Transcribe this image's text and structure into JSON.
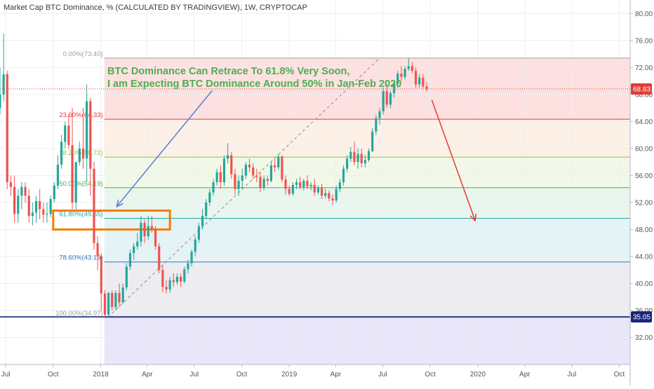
{
  "header": {
    "title": "Market Cap BTC Dominance, % (CALCULATED BY TRADINGVIEW), 1W, CRYPTOCAP"
  },
  "annotation": {
    "line1": "BTC Dominance Can Retrace To 61.8% Very Soon,",
    "line2": "I am Expecting BTC Dominance Around 50% in Jan-Feb 2020"
  },
  "price_labels": {
    "last": "68.83",
    "support": "35.05"
  },
  "colors": {
    "up": "#26a69a",
    "down": "#ef5350",
    "annotation": "#4caf50",
    "highlight_box": "#f57c00",
    "forecast_arrow": "#e53935",
    "pointer_arrow": "#5b7bd5",
    "support_line": "#1a237e",
    "last_price": "#e53935"
  },
  "chart_data": {
    "type": "candlestick",
    "title": "Market Cap BTC Dominance, % (CALCULATED BY TRADINGVIEW), 1W, CRYPTOCAP",
    "y_axis": {
      "position": "right",
      "range": [
        28,
        82
      ],
      "ticks": [
        "32.00",
        "36.00",
        "40.00",
        "44.00",
        "48.00",
        "52.00",
        "56.00",
        "60.00",
        "64.00",
        "68.00",
        "72.00",
        "76.00",
        "80.00"
      ]
    },
    "x_axis": {
      "range": [
        "2017-06-20",
        "2020-10-22"
      ],
      "ticks": [
        {
          "label": "Jul",
          "date": "2017-07-01"
        },
        {
          "label": "Oct",
          "date": "2017-10-01"
        },
        {
          "label": "2018",
          "date": "2018-01-01"
        },
        {
          "label": "Apr",
          "date": "2018-04-01"
        },
        {
          "label": "Jul",
          "date": "2018-07-01"
        },
        {
          "label": "Oct",
          "date": "2018-10-01"
        },
        {
          "label": "2019",
          "date": "2019-01-01"
        },
        {
          "label": "Apr",
          "date": "2019-04-01"
        },
        {
          "label": "Jul",
          "date": "2019-07-01"
        },
        {
          "label": "Oct",
          "date": "2019-10-01"
        },
        {
          "label": "2020",
          "date": "2020-01-01"
        },
        {
          "label": "Apr",
          "date": "2020-04-01"
        },
        {
          "label": "Jul",
          "date": "2020-07-01"
        },
        {
          "label": "Oct",
          "date": "2020-10-01"
        }
      ]
    },
    "grid": true,
    "fibonacci": {
      "start_date": "2018-01-08",
      "end_date": "2020-10-22",
      "levels": [
        {
          "label": "0.00%(73.40)",
          "value": 73.4,
          "color": "#9e9e9e",
          "fill": "#fde0e0"
        },
        {
          "label": "23.60%(64.33)",
          "value": 64.33,
          "color": "#e53935",
          "fill": "#fdf0e6"
        },
        {
          "label": "38.20%(58.72)",
          "value": 58.72,
          "color": "#8bc34a",
          "fill": "#f2f8e8"
        },
        {
          "label": "50.00%(54.19)",
          "value": 54.19,
          "color": "#4caf50",
          "fill": "#e8f6ee"
        },
        {
          "label": "61.80%(49.65)",
          "value": 49.65,
          "color": "#26a69a",
          "fill": "#e4f3f5"
        },
        {
          "label": "78.60%(43.19)",
          "value": 43.19,
          "color": "#2979c5",
          "fill": "#ececf1"
        },
        {
          "label": "100.00%(34.97)",
          "value": 34.97,
          "color": "#9e9e9e",
          "fill": "#e8e6f8"
        }
      ]
    },
    "horizontal_lines": [
      {
        "value": 35.05,
        "label": "35.05",
        "color": "#1a237e"
      },
      {
        "value": 68.83,
        "label": "68.83",
        "color": "#e53935",
        "style": "dotted"
      }
    ],
    "trend_line": {
      "from": {
        "date": "2018-01-15",
        "value": 35.0
      },
      "to": {
        "date": "2019-06-25",
        "value": 73.4
      }
    },
    "highlight_box": {
      "x": [
        "2017-10-01",
        "2018-05-15"
      ],
      "y": [
        48.0,
        50.8
      ]
    },
    "pointer_arrow": {
      "from": {
        "date": "2018-08-05",
        "value": 68.6
      },
      "to": {
        "date": "2018-02-01",
        "value": 51.4
      }
    },
    "forecast_arrow": {
      "from": {
        "date": "2019-10-04",
        "value": 67.2
      },
      "to": {
        "date": "2019-12-27",
        "value": 49.3
      }
    },
    "candles": [
      {
        "d": "2017-06-20",
        "o": 66,
        "h": 72,
        "l": 65,
        "c": 68
      },
      {
        "d": "2017-06-27",
        "o": 68,
        "h": 77,
        "l": 67,
        "c": 71
      },
      {
        "d": "2017-07-04",
        "o": 71,
        "h": 71.5,
        "l": 54,
        "c": 55
      },
      {
        "d": "2017-07-11",
        "o": 55,
        "h": 56,
        "l": 53,
        "c": 54.3
      },
      {
        "d": "2017-07-18",
        "o": 54.3,
        "h": 56,
        "l": 49,
        "c": 50.3
      },
      {
        "d": "2017-07-25",
        "o": 50.3,
        "h": 54,
        "l": 49,
        "c": 53
      },
      {
        "d": "2017-08-01",
        "o": 53,
        "h": 55,
        "l": 51,
        "c": 54.3
      },
      {
        "d": "2017-08-08",
        "o": 54.3,
        "h": 55,
        "l": 52,
        "c": 53
      },
      {
        "d": "2017-08-15",
        "o": 53,
        "h": 54,
        "l": 49,
        "c": 50
      },
      {
        "d": "2017-08-22",
        "o": 50,
        "h": 52,
        "l": 48.6,
        "c": 50.5
      },
      {
        "d": "2017-08-29",
        "o": 50.5,
        "h": 53,
        "l": 49,
        "c": 52.2
      },
      {
        "d": "2017-09-05",
        "o": 52.2,
        "h": 54,
        "l": 49.5,
        "c": 51
      },
      {
        "d": "2017-09-12",
        "o": 51,
        "h": 52,
        "l": 49,
        "c": 50.2
      },
      {
        "d": "2017-09-19",
        "o": 50.2,
        "h": 52,
        "l": 49,
        "c": 50.3
      },
      {
        "d": "2017-09-26",
        "o": 50.3,
        "h": 53,
        "l": 49.8,
        "c": 52.5
      },
      {
        "d": "2017-10-03",
        "o": 52.5,
        "h": 55,
        "l": 52,
        "c": 54.5
      },
      {
        "d": "2017-10-10",
        "o": 54.5,
        "h": 59,
        "l": 54,
        "c": 57.6
      },
      {
        "d": "2017-10-17",
        "o": 57.6,
        "h": 62,
        "l": 57,
        "c": 61
      },
      {
        "d": "2017-10-24",
        "o": 61,
        "h": 64,
        "l": 60,
        "c": 63.4
      },
      {
        "d": "2017-10-31",
        "o": 63.4,
        "h": 65,
        "l": 60,
        "c": 60.5
      },
      {
        "d": "2017-11-07",
        "o": 60.5,
        "h": 66,
        "l": 51,
        "c": 52
      },
      {
        "d": "2017-11-14",
        "o": 52,
        "h": 58,
        "l": 51,
        "c": 58
      },
      {
        "d": "2017-11-21",
        "o": 58,
        "h": 61,
        "l": 57.5,
        "c": 60
      },
      {
        "d": "2017-11-28",
        "o": 60,
        "h": 66,
        "l": 57,
        "c": 58.5
      },
      {
        "d": "2017-12-05",
        "o": 58.5,
        "h": 69.5,
        "l": 55,
        "c": 67
      },
      {
        "d": "2017-12-12",
        "o": 67,
        "h": 67.5,
        "l": 53,
        "c": 57
      },
      {
        "d": "2017-12-19",
        "o": 57,
        "h": 58,
        "l": 45,
        "c": 46
      },
      {
        "d": "2017-12-26",
        "o": 46,
        "h": 47,
        "l": 42,
        "c": 44
      },
      {
        "d": "2018-01-02",
        "o": 44,
        "h": 44.5,
        "l": 36,
        "c": 38.5
      },
      {
        "d": "2018-01-09",
        "o": 38.5,
        "h": 39,
        "l": 34.9,
        "c": 35.4
      },
      {
        "d": "2018-01-16",
        "o": 35.4,
        "h": 38.7,
        "l": 35,
        "c": 38.6
      },
      {
        "d": "2018-01-23",
        "o": 38.6,
        "h": 39,
        "l": 36,
        "c": 36.5
      },
      {
        "d": "2018-01-30",
        "o": 36.5,
        "h": 39,
        "l": 36,
        "c": 38.6
      },
      {
        "d": "2018-02-06",
        "o": 38.6,
        "h": 40,
        "l": 36.5,
        "c": 37.2
      },
      {
        "d": "2018-02-13",
        "o": 37.2,
        "h": 40,
        "l": 37,
        "c": 39.4
      },
      {
        "d": "2018-02-20",
        "o": 39.4,
        "h": 43,
        "l": 39,
        "c": 42.5
      },
      {
        "d": "2018-02-27",
        "o": 42.5,
        "h": 45,
        "l": 42,
        "c": 44.5
      },
      {
        "d": "2018-03-06",
        "o": 44.5,
        "h": 46,
        "l": 43.5,
        "c": 45.5
      },
      {
        "d": "2018-03-13",
        "o": 45.5,
        "h": 47.5,
        "l": 45,
        "c": 46.2
      },
      {
        "d": "2018-03-20",
        "o": 46.2,
        "h": 50,
        "l": 45.5,
        "c": 49
      },
      {
        "d": "2018-03-27",
        "o": 49,
        "h": 49.5,
        "l": 46,
        "c": 47
      },
      {
        "d": "2018-04-03",
        "o": 47,
        "h": 50,
        "l": 46.5,
        "c": 48.5
      },
      {
        "d": "2018-04-10",
        "o": 48.5,
        "h": 50,
        "l": 47.5,
        "c": 48
      },
      {
        "d": "2018-04-17",
        "o": 48,
        "h": 48.5,
        "l": 45,
        "c": 45.5
      },
      {
        "d": "2018-04-24",
        "o": 45.5,
        "h": 46,
        "l": 41.5,
        "c": 42
      },
      {
        "d": "2018-05-01",
        "o": 42,
        "h": 42.8,
        "l": 38.7,
        "c": 39.5
      },
      {
        "d": "2018-05-08",
        "o": 39.5,
        "h": 40.5,
        "l": 38.5,
        "c": 39.1
      },
      {
        "d": "2018-05-15",
        "o": 39.1,
        "h": 41,
        "l": 38.6,
        "c": 40.5
      },
      {
        "d": "2018-05-22",
        "o": 40.5,
        "h": 41.5,
        "l": 39.5,
        "c": 40.2
      },
      {
        "d": "2018-05-29",
        "o": 40.2,
        "h": 41.5,
        "l": 39.8,
        "c": 41
      },
      {
        "d": "2018-06-05",
        "o": 41,
        "h": 41.5,
        "l": 39.5,
        "c": 40.3
      },
      {
        "d": "2018-06-12",
        "o": 40.3,
        "h": 42.5,
        "l": 40,
        "c": 42.1
      },
      {
        "d": "2018-06-19",
        "o": 42.1,
        "h": 43.5,
        "l": 41.5,
        "c": 43
      },
      {
        "d": "2018-06-26",
        "o": 43,
        "h": 45,
        "l": 42.5,
        "c": 44.7
      },
      {
        "d": "2018-07-03",
        "o": 44.7,
        "h": 47,
        "l": 44,
        "c": 46.5
      },
      {
        "d": "2018-07-10",
        "o": 46.5,
        "h": 49,
        "l": 46,
        "c": 48.5
      },
      {
        "d": "2018-07-17",
        "o": 48.5,
        "h": 51,
        "l": 48,
        "c": 50
      },
      {
        "d": "2018-07-24",
        "o": 50,
        "h": 52.5,
        "l": 49.5,
        "c": 52
      },
      {
        "d": "2018-07-31",
        "o": 52,
        "h": 54,
        "l": 51.5,
        "c": 53.5
      },
      {
        "d": "2018-08-07",
        "o": 53.5,
        "h": 55.5,
        "l": 53,
        "c": 55
      },
      {
        "d": "2018-08-14",
        "o": 55,
        "h": 57,
        "l": 54.5,
        "c": 56.5
      },
      {
        "d": "2018-08-21",
        "o": 56.5,
        "h": 57.5,
        "l": 54,
        "c": 55
      },
      {
        "d": "2018-08-28",
        "o": 55,
        "h": 59,
        "l": 54.5,
        "c": 58.5
      },
      {
        "d": "2018-09-04",
        "o": 58.5,
        "h": 60.8,
        "l": 57.8,
        "c": 59
      },
      {
        "d": "2018-09-11",
        "o": 59,
        "h": 59.5,
        "l": 55.5,
        "c": 56.2
      },
      {
        "d": "2018-09-18",
        "o": 56.2,
        "h": 57,
        "l": 53.2,
        "c": 54
      },
      {
        "d": "2018-09-25",
        "o": 54,
        "h": 56,
        "l": 53,
        "c": 55.2
      },
      {
        "d": "2018-10-02",
        "o": 55.2,
        "h": 57,
        "l": 54,
        "c": 56
      },
      {
        "d": "2018-10-09",
        "o": 56,
        "h": 58,
        "l": 55.5,
        "c": 57.6
      },
      {
        "d": "2018-10-16",
        "o": 57.6,
        "h": 58.5,
        "l": 56.5,
        "c": 57.2
      },
      {
        "d": "2018-10-23",
        "o": 57.2,
        "h": 57.8,
        "l": 55.5,
        "c": 56
      },
      {
        "d": "2018-10-30",
        "o": 56,
        "h": 57,
        "l": 55,
        "c": 55.8
      },
      {
        "d": "2018-11-06",
        "o": 55.8,
        "h": 56.5,
        "l": 53.5,
        "c": 54.2
      },
      {
        "d": "2018-11-13",
        "o": 54.2,
        "h": 56,
        "l": 53.8,
        "c": 55.5
      },
      {
        "d": "2018-11-20",
        "o": 55.5,
        "h": 56,
        "l": 54.5,
        "c": 55.2
      },
      {
        "d": "2018-11-27",
        "o": 55.2,
        "h": 58,
        "l": 55,
        "c": 57.5
      },
      {
        "d": "2018-12-04",
        "o": 57.5,
        "h": 58.5,
        "l": 56.5,
        "c": 57.2
      },
      {
        "d": "2018-12-11",
        "o": 57.2,
        "h": 59.2,
        "l": 56.8,
        "c": 58.8
      },
      {
        "d": "2018-12-18",
        "o": 58.8,
        "h": 59,
        "l": 55,
        "c": 55.4
      },
      {
        "d": "2018-12-25",
        "o": 55.4,
        "h": 56,
        "l": 53.2,
        "c": 54
      },
      {
        "d": "2019-01-01",
        "o": 54,
        "h": 54.5,
        "l": 53,
        "c": 53.3
      },
      {
        "d": "2019-01-08",
        "o": 53.3,
        "h": 55,
        "l": 53,
        "c": 54.6
      },
      {
        "d": "2019-01-15",
        "o": 54.6,
        "h": 55.5,
        "l": 54,
        "c": 55
      },
      {
        "d": "2019-01-22",
        "o": 55,
        "h": 55.8,
        "l": 54,
        "c": 54.3
      },
      {
        "d": "2019-01-29",
        "o": 54.3,
        "h": 55.5,
        "l": 53.8,
        "c": 55.2
      },
      {
        "d": "2019-02-05",
        "o": 55.2,
        "h": 56,
        "l": 54,
        "c": 54.4
      },
      {
        "d": "2019-02-12",
        "o": 54.4,
        "h": 55,
        "l": 53.8,
        "c": 54.6
      },
      {
        "d": "2019-02-19",
        "o": 54.6,
        "h": 55.5,
        "l": 53,
        "c": 53.5
      },
      {
        "d": "2019-02-26",
        "o": 53.5,
        "h": 54.5,
        "l": 53.2,
        "c": 54.2
      },
      {
        "d": "2019-03-05",
        "o": 54.2,
        "h": 54.8,
        "l": 52.5,
        "c": 53
      },
      {
        "d": "2019-03-12",
        "o": 53,
        "h": 54,
        "l": 52.6,
        "c": 53.4
      },
      {
        "d": "2019-03-19",
        "o": 53.4,
        "h": 53.8,
        "l": 52.2,
        "c": 52.6
      },
      {
        "d": "2019-03-26",
        "o": 52.6,
        "h": 53.2,
        "l": 51.6,
        "c": 52.3
      },
      {
        "d": "2019-04-02",
        "o": 52.3,
        "h": 54.5,
        "l": 52,
        "c": 54
      },
      {
        "d": "2019-04-09",
        "o": 54,
        "h": 55.5,
        "l": 53.5,
        "c": 55
      },
      {
        "d": "2019-04-16",
        "o": 55,
        "h": 57.5,
        "l": 54.5,
        "c": 57
      },
      {
        "d": "2019-04-23",
        "o": 57,
        "h": 59,
        "l": 56.5,
        "c": 58.5
      },
      {
        "d": "2019-04-30",
        "o": 58.5,
        "h": 60.2,
        "l": 58,
        "c": 59.5
      },
      {
        "d": "2019-05-07",
        "o": 59.5,
        "h": 61,
        "l": 57.5,
        "c": 58
      },
      {
        "d": "2019-05-14",
        "o": 58,
        "h": 60,
        "l": 57,
        "c": 59.2
      },
      {
        "d": "2019-05-21",
        "o": 59.2,
        "h": 60,
        "l": 57.2,
        "c": 57.8
      },
      {
        "d": "2019-05-28",
        "o": 57.8,
        "h": 59,
        "l": 57.2,
        "c": 58.3
      },
      {
        "d": "2019-06-04",
        "o": 58.3,
        "h": 60,
        "l": 58,
        "c": 59.6
      },
      {
        "d": "2019-06-11",
        "o": 59.6,
        "h": 63,
        "l": 59.5,
        "c": 62.5
      },
      {
        "d": "2019-06-18",
        "o": 62.5,
        "h": 65,
        "l": 62,
        "c": 64.5
      },
      {
        "d": "2019-06-25",
        "o": 64.5,
        "h": 66,
        "l": 63.5,
        "c": 65.5
      },
      {
        "d": "2019-07-02",
        "o": 65.5,
        "h": 69,
        "l": 65,
        "c": 68.5
      },
      {
        "d": "2019-07-09",
        "o": 68.5,
        "h": 69.5,
        "l": 66,
        "c": 66.5
      },
      {
        "d": "2019-07-16",
        "o": 66.5,
        "h": 68.5,
        "l": 66,
        "c": 68.2
      },
      {
        "d": "2019-07-23",
        "o": 68.2,
        "h": 70,
        "l": 67.5,
        "c": 69.6
      },
      {
        "d": "2019-07-30",
        "o": 69.6,
        "h": 71.5,
        "l": 69,
        "c": 71.1
      },
      {
        "d": "2019-08-06",
        "o": 71.1,
        "h": 72.2,
        "l": 70,
        "c": 70.6
      },
      {
        "d": "2019-08-13",
        "o": 70.6,
        "h": 72.2,
        "l": 70.2,
        "c": 71.8
      },
      {
        "d": "2019-08-20",
        "o": 71.8,
        "h": 73.4,
        "l": 71.5,
        "c": 72.2
      },
      {
        "d": "2019-08-27",
        "o": 72.2,
        "h": 72.8,
        "l": 71.2,
        "c": 71.5
      },
      {
        "d": "2019-09-03",
        "o": 71.5,
        "h": 72,
        "l": 69,
        "c": 69.5
      },
      {
        "d": "2019-09-10",
        "o": 69.5,
        "h": 71,
        "l": 69,
        "c": 70.5
      },
      {
        "d": "2019-09-17",
        "o": 70.5,
        "h": 71,
        "l": 68.9,
        "c": 69.2
      },
      {
        "d": "2019-09-24",
        "o": 69.2,
        "h": 69.8,
        "l": 68.4,
        "c": 68.83
      }
    ]
  }
}
